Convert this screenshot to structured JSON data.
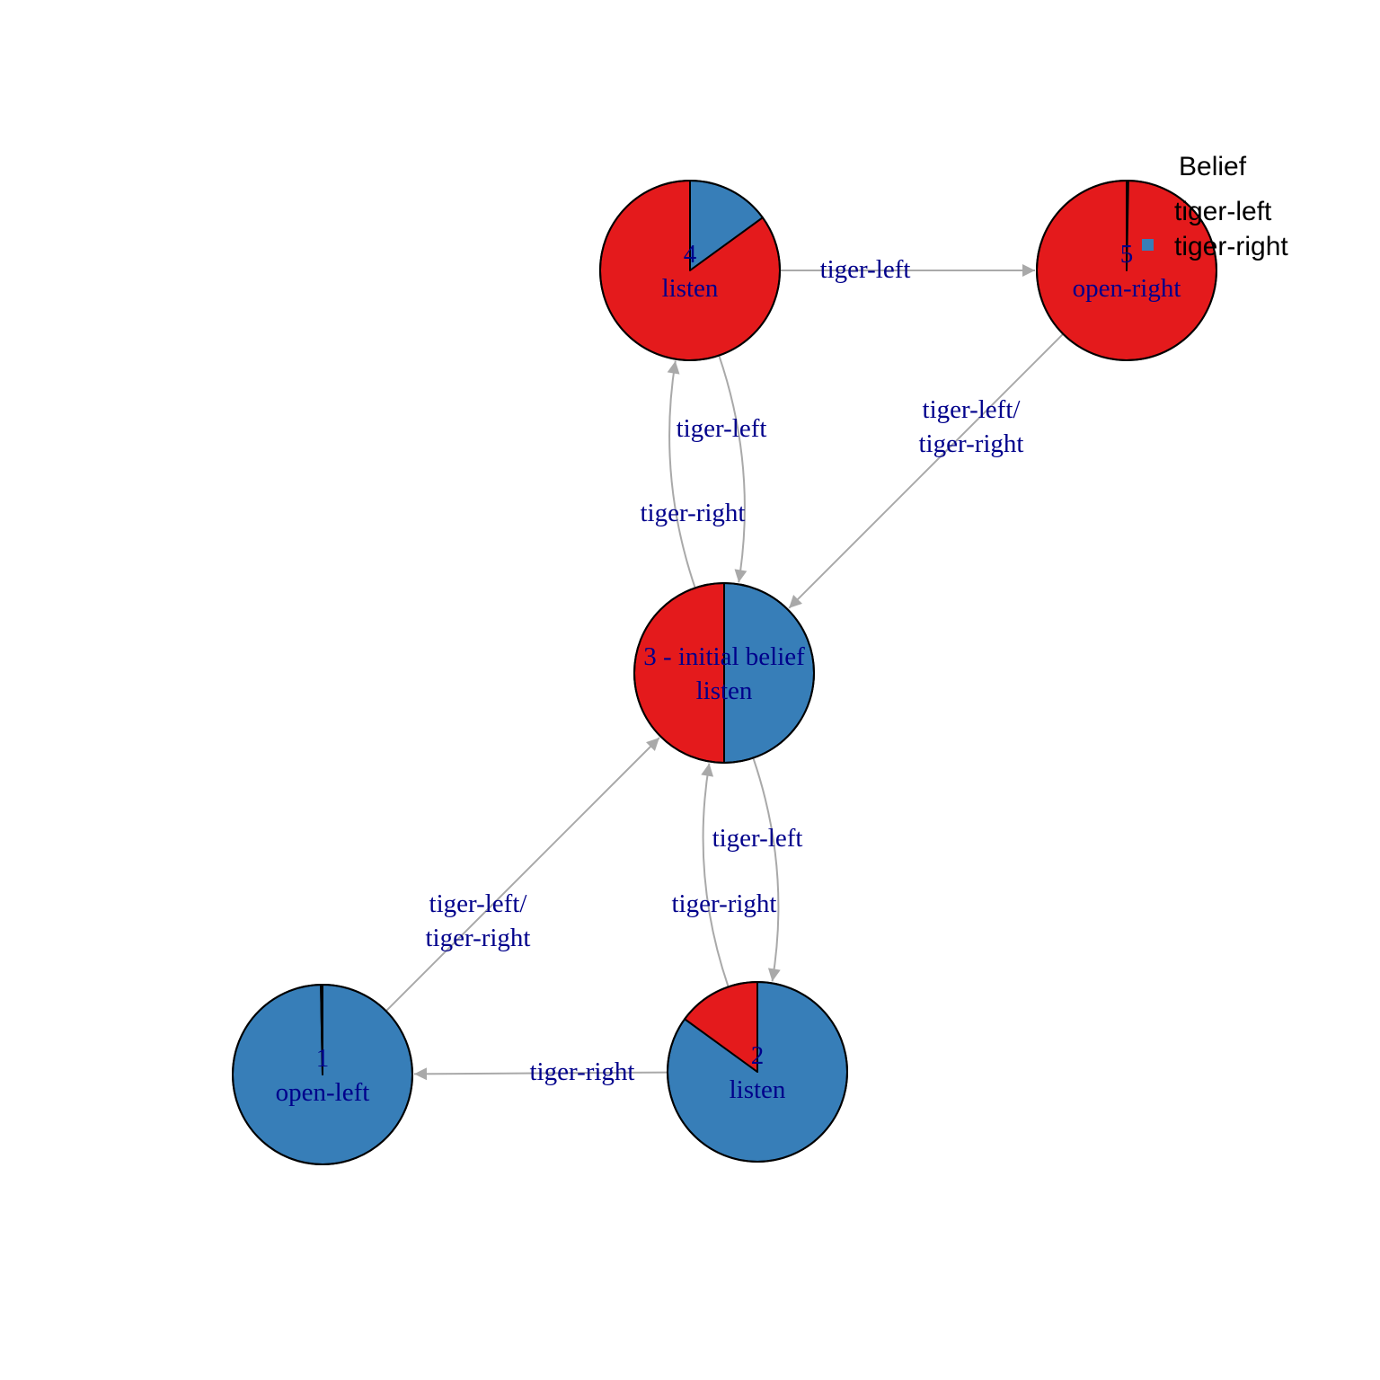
{
  "colors": {
    "tiger_left": "#E41A1C",
    "tiger_right": "#377EB8",
    "edge": "#A9A9A9",
    "label": "#00008B",
    "outline": "#000000"
  },
  "legend": {
    "title": "Belief",
    "items": [
      {
        "label": "tiger-left",
        "color": "#E41A1C"
      },
      {
        "label": "tiger-right",
        "color": "#377EB8"
      }
    ]
  },
  "nodes": [
    {
      "id": "1",
      "number": "1",
      "action": "open-left",
      "belief": {
        "tiger-left": 0.003,
        "tiger-right": 0.997
      }
    },
    {
      "id": "2",
      "number": "2",
      "action": "listen",
      "belief": {
        "tiger-left": 0.15,
        "tiger-right": 0.85
      }
    },
    {
      "id": "3",
      "number": "3 - initial belief",
      "action": "listen",
      "belief": {
        "tiger-left": 0.5,
        "tiger-right": 0.5
      }
    },
    {
      "id": "4",
      "number": "4",
      "action": "listen",
      "belief": {
        "tiger-left": 0.85,
        "tiger-right": 0.15
      }
    },
    {
      "id": "5",
      "number": "5",
      "action": "open-right",
      "belief": {
        "tiger-left": 0.997,
        "tiger-right": 0.003
      }
    }
  ],
  "edges": [
    {
      "from": "4",
      "to": "5",
      "lines": [
        "tiger-left"
      ]
    },
    {
      "from": "3",
      "to": "4",
      "lines": [
        "tiger-left"
      ]
    },
    {
      "from": "4",
      "to": "3",
      "lines": [
        "tiger-right"
      ]
    },
    {
      "from": "5",
      "to": "3",
      "lines": [
        "tiger-left/",
        "tiger-right"
      ]
    },
    {
      "from": "1",
      "to": "3",
      "lines": [
        "tiger-left/",
        "tiger-right"
      ]
    },
    {
      "from": "2",
      "to": "3",
      "lines": [
        "tiger-left"
      ]
    },
    {
      "from": "3",
      "to": "2",
      "lines": [
        "tiger-right"
      ]
    },
    {
      "from": "2",
      "to": "1",
      "lines": [
        "tiger-right"
      ]
    }
  ]
}
